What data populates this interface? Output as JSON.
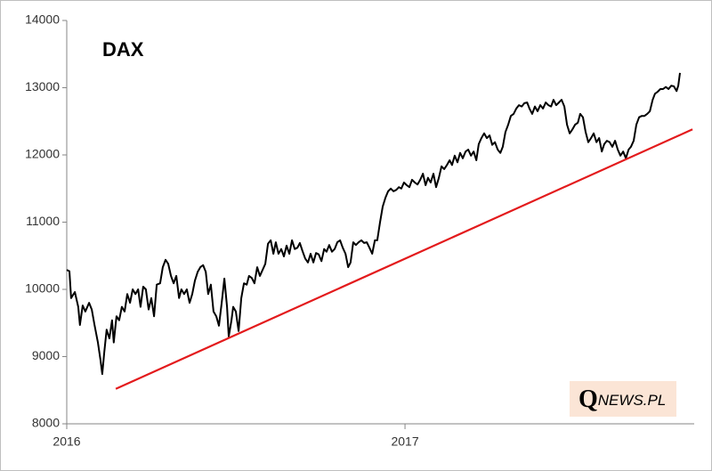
{
  "chart_data": {
    "type": "line",
    "title": "DAX",
    "xlim": [
      2016,
      2017.855
    ],
    "xticks": [
      2016,
      2017
    ],
    "ylim": [
      8000,
      14000
    ],
    "yticks": [
      8000,
      9000,
      10000,
      11000,
      12000,
      13000,
      14000
    ],
    "watermark": [
      "Q",
      "NEWS.PL"
    ],
    "series": [
      {
        "color": "#000000",
        "x": [
          2016.0,
          2016.008,
          2016.013,
          2016.024,
          2016.034,
          2016.039,
          2016.047,
          2016.055,
          2016.066,
          2016.074,
          2016.082,
          2016.092,
          2016.1,
          2016.105,
          2016.111,
          2016.118,
          2016.126,
          2016.134,
          2016.139,
          2016.147,
          2016.155,
          2016.163,
          2016.171,
          2016.179,
          2016.187,
          2016.195,
          2016.203,
          2016.211,
          2016.218,
          2016.226,
          2016.234,
          2016.242,
          2016.25,
          2016.258,
          2016.266,
          2016.276,
          2016.284,
          2016.292,
          2016.3,
          2016.308,
          2016.316,
          2016.324,
          2016.332,
          2016.339,
          2016.347,
          2016.355,
          2016.363,
          2016.371,
          2016.379,
          2016.387,
          2016.395,
          2016.403,
          2016.411,
          2016.418,
          2016.426,
          2016.434,
          2016.442,
          2016.45,
          2016.458,
          2016.466,
          2016.474,
          2016.479,
          2016.487,
          2016.492,
          2016.5,
          2016.508,
          2016.516,
          2016.524,
          2016.532,
          2016.539,
          2016.547,
          2016.555,
          2016.563,
          2016.571,
          2016.579,
          2016.587,
          2016.595,
          2016.603,
          2016.611,
          2016.618,
          2016.626,
          2016.634,
          2016.642,
          2016.65,
          2016.658,
          2016.666,
          2016.674,
          2016.682,
          2016.689,
          2016.697,
          2016.705,
          2016.713,
          2016.721,
          2016.729,
          2016.737,
          2016.745,
          2016.753,
          2016.761,
          2016.768,
          2016.776,
          2016.784,
          2016.792,
          2016.8,
          2016.808,
          2016.816,
          2016.824,
          2016.832,
          2016.839,
          2016.847,
          2016.855,
          2016.863,
          2016.871,
          2016.879,
          2016.887,
          2016.895,
          2016.903,
          2016.911,
          2016.918,
          2016.926,
          2016.934,
          2016.942,
          2016.95,
          2016.958,
          2016.966,
          2016.974,
          2016.982,
          2016.989,
          2016.997,
          2017.005,
          2017.013,
          2017.021,
          2017.029,
          2017.037,
          2017.045,
          2017.053,
          2017.061,
          2017.068,
          2017.076,
          2017.084,
          2017.092,
          2017.1,
          2017.108,
          2017.116,
          2017.124,
          2017.132,
          2017.139,
          2017.147,
          2017.155,
          2017.163,
          2017.171,
          2017.179,
          2017.187,
          2017.195,
          2017.203,
          2017.211,
          2017.218,
          2017.226,
          2017.234,
          2017.242,
          2017.25,
          2017.258,
          2017.266,
          2017.274,
          2017.282,
          2017.289,
          2017.297,
          2017.305,
          2017.313,
          2017.321,
          2017.329,
          2017.337,
          2017.345,
          2017.353,
          2017.361,
          2017.368,
          2017.376,
          2017.384,
          2017.392,
          2017.4,
          2017.408,
          2017.416,
          2017.424,
          2017.432,
          2017.439,
          2017.447,
          2017.455,
          2017.463,
          2017.471,
          2017.479,
          2017.487,
          2017.495,
          2017.503,
          2017.511,
          2017.518,
          2017.526,
          2017.534,
          2017.542,
          2017.55,
          2017.558,
          2017.566,
          2017.574,
          2017.582,
          2017.589,
          2017.597,
          2017.605,
          2017.613,
          2017.621,
          2017.629,
          2017.637,
          2017.645,
          2017.653,
          2017.661,
          2017.668,
          2017.676,
          2017.684,
          2017.692,
          2017.7,
          2017.708,
          2017.716,
          2017.724,
          2017.732,
          2017.739,
          2017.747,
          2017.755,
          2017.763,
          2017.771,
          2017.779,
          2017.787,
          2017.795,
          2017.803,
          2017.808,
          2017.813
        ],
        "values": [
          10290,
          10270,
          9870,
          9960,
          9740,
          9470,
          9760,
          9670,
          9800,
          9700,
          9470,
          9210,
          8940,
          8740,
          9070,
          9400,
          9270,
          9540,
          9210,
          9600,
          9540,
          9740,
          9670,
          9930,
          9800,
          10000,
          9930,
          10000,
          9740,
          10040,
          10000,
          9700,
          9870,
          9600,
          10070,
          10090,
          10330,
          10440,
          10380,
          10200,
          10090,
          10200,
          9870,
          10000,
          9930,
          10000,
          9800,
          9930,
          10130,
          10260,
          10330,
          10360,
          10260,
          9930,
          10070,
          9670,
          9600,
          9460,
          9800,
          10160,
          9740,
          9300,
          9540,
          9740,
          9670,
          9380,
          9870,
          10090,
          10070,
          10200,
          10170,
          10090,
          10330,
          10200,
          10290,
          10380,
          10680,
          10730,
          10530,
          10700,
          10530,
          10600,
          10490,
          10650,
          10530,
          10730,
          10600,
          10620,
          10690,
          10570,
          10460,
          10400,
          10530,
          10400,
          10540,
          10520,
          10420,
          10600,
          10560,
          10660,
          10560,
          10600,
          10700,
          10730,
          10620,
          10530,
          10330,
          10400,
          10700,
          10660,
          10700,
          10730,
          10690,
          10700,
          10620,
          10530,
          10730,
          10730,
          10990,
          11230,
          11360,
          11460,
          11500,
          11460,
          11480,
          11520,
          11500,
          11590,
          11550,
          11520,
          11630,
          11590,
          11560,
          11630,
          11720,
          11550,
          11660,
          11590,
          11720,
          11520,
          11660,
          11830,
          11790,
          11850,
          11920,
          11850,
          11990,
          11890,
          12030,
          11950,
          12050,
          12080,
          11990,
          12050,
          11920,
          12160,
          12250,
          12320,
          12250,
          12290,
          12150,
          12190,
          12080,
          12030,
          12120,
          12340,
          12450,
          12580,
          12610,
          12690,
          12740,
          12720,
          12770,
          12780,
          12690,
          12610,
          12720,
          12650,
          12740,
          12690,
          12780,
          12740,
          12720,
          12820,
          12740,
          12780,
          12820,
          12720,
          12450,
          12320,
          12380,
          12450,
          12480,
          12610,
          12560,
          12340,
          12190,
          12250,
          12320,
          12190,
          12250,
          12050,
          12160,
          12210,
          12190,
          12120,
          12210,
          12080,
          11990,
          12050,
          11950,
          12080,
          12120,
          12210,
          12450,
          12560,
          12580,
          12580,
          12610,
          12650,
          12820,
          12910,
          12940,
          12980,
          12980,
          13010,
          12980,
          13030,
          13020,
          12950,
          13030,
          13220
        ]
      },
      {
        "color": "#e31a1c",
        "x": [
          2016.145,
          2017.85
        ],
        "values": [
          8520,
          12380
        ]
      }
    ]
  }
}
